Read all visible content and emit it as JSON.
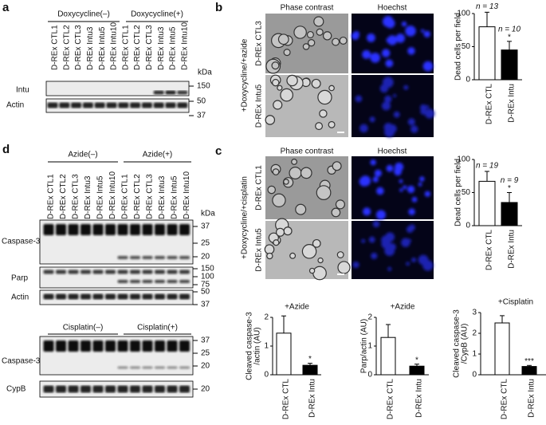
{
  "panel_a": {
    "label": "a",
    "groups": [
      "Doxycycline(–)",
      "Doxycycline(+)"
    ],
    "lanes": [
      "D-REx CTL1",
      "D-REx CTL2",
      "D-REx CTL3",
      "D-REx Intu3",
      "D-REx Intu5",
      "D-REx Intu10",
      "D-REx CTL1",
      "D-REx CTL2",
      "D-REx CTL3",
      "D-REx Intu3",
      "D-REx Intu5",
      "D-REx Intu10"
    ],
    "unit": "kDa",
    "rows": [
      "Intu",
      "Actin"
    ],
    "markers": [
      150,
      50,
      37
    ]
  },
  "panel_b": {
    "label": "b",
    "columns": [
      "Phase contrast",
      "Hoechst"
    ],
    "condition": "+Doxycycline/+azide",
    "rows": [
      "D-REx CTL3",
      "D-REx Intu5"
    ]
  },
  "panel_c": {
    "label": "c",
    "columns": [
      "Phase contrast",
      "Hoechst"
    ],
    "condition": "+Doxycycline/+cisplatin",
    "rows": [
      "D-REx CTL1",
      "D-REx Intu5"
    ]
  },
  "panel_d": {
    "label": "d",
    "groups": [
      "Azide(–)",
      "Azide(+)"
    ],
    "lanes": [
      "D-REx CTL1",
      "D-REx CTL2",
      "D-REx CTL3",
      "D-REx Intu3",
      "D-REx Intu5",
      "D-REx Intu10",
      "D-REx CTL1",
      "D-REx CTL2",
      "D-REx CTL3",
      "D-REx Intu3",
      "D-REx Intu5",
      "D-REx Intu10"
    ],
    "unit": "kDa",
    "rows": [
      "Caspase-3",
      "Parp",
      "Actin"
    ],
    "markers": [
      37,
      25,
      20,
      150,
      100,
      75,
      50,
      37
    ],
    "groups2": [
      "Cisplatin(–)",
      "Cisplatin(+)"
    ],
    "rows2": [
      "Caspase-3",
      "CypB"
    ],
    "markers2": [
      37,
      25,
      20,
      20
    ]
  },
  "chart_data": [
    {
      "type": "bar",
      "y_label": [
        "Dead cells per field"
      ],
      "categories": [
        "D-REx CTL",
        "D-REx Intu"
      ],
      "values": [
        80,
        45
      ],
      "errors": [
        22,
        13
      ],
      "colors": [
        "#ffffff",
        "#000000"
      ],
      "n_labels": [
        "n = 13",
        "n = 10"
      ],
      "significance": "*",
      "ylim": [
        0,
        100
      ],
      "yticks": [
        0,
        50,
        100
      ]
    },
    {
      "type": "bar",
      "y_label": [
        "Dead cells per field"
      ],
      "categories": [
        "D-REx CTL",
        "D-REx Intu"
      ],
      "values": [
        67,
        35
      ],
      "errors": [
        15,
        15
      ],
      "colors": [
        "#ffffff",
        "#000000"
      ],
      "n_labels": [
        "n = 19",
        "n = 9"
      ],
      "significance": "*",
      "ylim": [
        0,
        100
      ],
      "yticks": [
        0,
        50,
        100
      ]
    },
    {
      "type": "bar",
      "title": "+Azide",
      "y_label": [
        "Cleaved caspase-3",
        "/actin (AU)"
      ],
      "categories": [
        "D-REx CTL",
        "D-REx Intu"
      ],
      "values": [
        1.45,
        0.33
      ],
      "errors": [
        0.6,
        0.07
      ],
      "colors": [
        "#ffffff",
        "#000000"
      ],
      "significance": "*",
      "ylim": [
        0,
        2
      ],
      "yticks": [
        0,
        1,
        2
      ]
    },
    {
      "type": "bar",
      "title": "+Azide",
      "y_label": [
        "Parp/actin (AU)"
      ],
      "categories": [
        "D-REx CTL",
        "D-REx Intu"
      ],
      "values": [
        1.3,
        0.3
      ],
      "errors": [
        0.45,
        0.07
      ],
      "colors": [
        "#ffffff",
        "#000000"
      ],
      "significance": "*",
      "ylim": [
        0,
        2
      ],
      "yticks": [
        0,
        1,
        2
      ]
    },
    {
      "type": "bar",
      "title": "+Cisplatin",
      "y_label": [
        "Cleaved caspase-3",
        "/CypB (AU)"
      ],
      "categories": [
        "D-REx CTL",
        "D-REx Intu"
      ],
      "values": [
        2.5,
        0.4
      ],
      "errors": [
        0.35,
        0.05
      ],
      "colors": [
        "#ffffff",
        "#000000"
      ],
      "significance": "***",
      "ylim": [
        0,
        3
      ],
      "yticks": [
        0,
        1,
        2,
        3
      ]
    }
  ]
}
